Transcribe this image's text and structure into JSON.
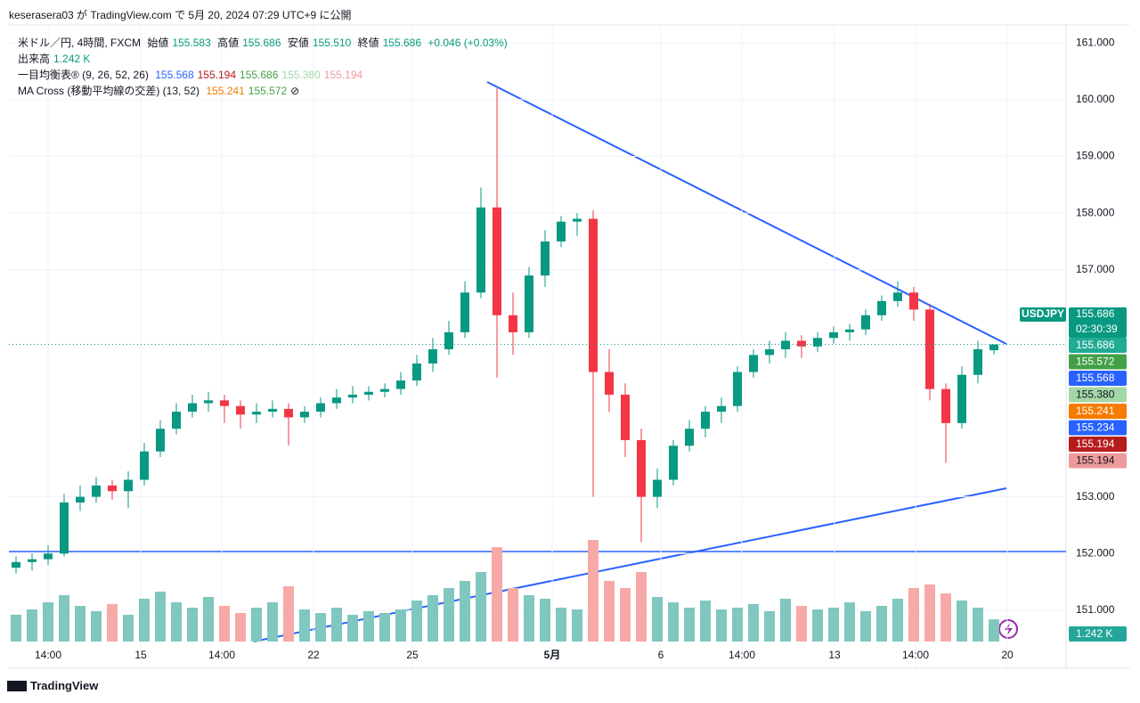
{
  "header": {
    "published": "keserasera03 が TradingView.com で 5月 20, 2024 07:29 UTC+9 に公開"
  },
  "legend": {
    "line1": {
      "symbol": "米ドル／円, 4時間, FXCM",
      "open_label": "始値",
      "open": "155.583",
      "high_label": "高値",
      "high": "155.686",
      "low_label": "安値",
      "low": "155.510",
      "close_label": "終値",
      "close": "155.686",
      "change": "+0.046 (+0.03%)"
    },
    "line2": {
      "label": "出来高",
      "value": "1.242 K"
    },
    "line3": {
      "label": "一目均衡表® (9, 26, 52, 26)",
      "values": [
        {
          "text": "155.568",
          "color": "#2962ff"
        },
        {
          "text": "155.194",
          "color": "#b71c1c"
        },
        {
          "text": "155.686",
          "color": "#43a047"
        },
        {
          "text": "155.380",
          "color": "#a5d6a7"
        },
        {
          "text": "155.194",
          "color": "#ef9a9a"
        }
      ]
    },
    "line4": {
      "label": "MA Cross (移動平均線の交差) (13, 52)",
      "values": [
        {
          "text": "155.241",
          "color": "#f57c00"
        },
        {
          "text": "155.572",
          "color": "#43a047"
        }
      ],
      "icon": "⊘"
    }
  },
  "chart": {
    "price_ylim": [
      150.45,
      161.41
    ],
    "price_ticks": [
      {
        "value": 161,
        "label": "161.000"
      },
      {
        "value": 160,
        "label": "160.000"
      },
      {
        "value": 159,
        "label": "159.000"
      },
      {
        "value": 158,
        "label": "158.000"
      },
      {
        "value": 157,
        "label": "157.000"
      },
      {
        "value": 153,
        "label": "153.000"
      },
      {
        "value": 152,
        "label": "152.000"
      },
      {
        "value": 151,
        "label": "151.000"
      }
    ],
    "x_labels": [
      "14:00",
      "15",
      "14:00",
      "22",
      "25",
      "5月",
      "6",
      "14:00",
      "13",
      "14:00",
      "20"
    ],
    "up_color": "#089981",
    "down_color": "#f23645",
    "candles": [
      [
        151.75,
        151.95,
        151.65,
        151.85
      ],
      [
        151.85,
        152.0,
        151.7,
        151.9
      ],
      [
        151.9,
        152.15,
        151.8,
        152.0
      ],
      [
        152.0,
        153.05,
        151.95,
        152.9
      ],
      [
        152.9,
        153.2,
        152.75,
        153.0
      ],
      [
        153.0,
        153.35,
        152.9,
        153.2
      ],
      [
        153.2,
        153.3,
        152.95,
        153.1
      ],
      [
        153.1,
        153.45,
        152.8,
        153.3
      ],
      [
        153.3,
        153.95,
        153.2,
        153.8
      ],
      [
        153.8,
        154.35,
        153.7,
        154.2
      ],
      [
        154.2,
        154.65,
        154.1,
        154.5
      ],
      [
        154.5,
        154.8,
        154.4,
        154.65
      ],
      [
        154.65,
        154.85,
        154.5,
        154.7
      ],
      [
        154.7,
        154.8,
        154.3,
        154.6
      ],
      [
        154.6,
        154.7,
        154.2,
        154.45
      ],
      [
        154.45,
        154.65,
        154.3,
        154.5
      ],
      [
        154.5,
        154.7,
        154.4,
        154.55
      ],
      [
        154.55,
        154.65,
        153.9,
        154.4
      ],
      [
        154.4,
        154.6,
        154.3,
        154.5
      ],
      [
        154.5,
        154.75,
        154.4,
        154.65
      ],
      [
        154.65,
        154.9,
        154.55,
        154.75
      ],
      [
        154.75,
        154.95,
        154.65,
        154.8
      ],
      [
        154.8,
        154.95,
        154.7,
        154.85
      ],
      [
        154.85,
        155.0,
        154.75,
        154.9
      ],
      [
        154.9,
        155.2,
        154.8,
        155.05
      ],
      [
        155.05,
        155.5,
        154.95,
        155.35
      ],
      [
        155.35,
        155.8,
        155.2,
        155.6
      ],
      [
        155.6,
        156.1,
        155.5,
        155.9
      ],
      [
        155.9,
        156.8,
        155.8,
        156.6
      ],
      [
        156.6,
        158.45,
        156.5,
        158.1
      ],
      [
        158.1,
        160.2,
        155.1,
        156.2
      ],
      [
        156.2,
        156.6,
        155.5,
        155.9
      ],
      [
        155.9,
        157.05,
        155.8,
        156.9
      ],
      [
        156.9,
        157.7,
        156.7,
        157.5
      ],
      [
        157.5,
        157.95,
        157.4,
        157.85
      ],
      [
        157.85,
        158.0,
        157.6,
        157.9
      ],
      [
        157.9,
        158.05,
        153.0,
        155.2
      ],
      [
        155.2,
        155.6,
        154.5,
        154.8
      ],
      [
        154.8,
        155.0,
        153.7,
        154.0
      ],
      [
        154.0,
        154.2,
        152.2,
        153.0
      ],
      [
        153.0,
        153.5,
        152.8,
        153.3
      ],
      [
        153.3,
        154.0,
        153.2,
        153.9
      ],
      [
        153.9,
        154.35,
        153.8,
        154.2
      ],
      [
        154.2,
        154.6,
        154.05,
        154.5
      ],
      [
        154.5,
        154.75,
        154.3,
        154.6
      ],
      [
        154.6,
        155.3,
        154.5,
        155.2
      ],
      [
        155.2,
        155.6,
        155.1,
        155.5
      ],
      [
        155.5,
        155.75,
        155.35,
        155.6
      ],
      [
        155.6,
        155.9,
        155.45,
        155.75
      ],
      [
        155.75,
        155.85,
        155.45,
        155.65
      ],
      [
        155.65,
        155.9,
        155.55,
        155.8
      ],
      [
        155.8,
        156.0,
        155.7,
        155.9
      ],
      [
        155.9,
        156.05,
        155.75,
        155.95
      ],
      [
        155.95,
        156.3,
        155.85,
        156.2
      ],
      [
        156.2,
        156.55,
        156.1,
        156.45
      ],
      [
        156.45,
        156.8,
        156.35,
        156.6
      ],
      [
        156.6,
        156.7,
        156.1,
        156.3
      ],
      [
        156.3,
        156.4,
        154.7,
        154.9
      ],
      [
        154.9,
        155.0,
        153.6,
        154.3
      ],
      [
        154.3,
        155.3,
        154.2,
        155.15
      ],
      [
        155.15,
        155.75,
        155.0,
        155.6
      ],
      [
        155.583,
        155.686,
        155.51,
        155.686
      ]
    ],
    "volume_ylim": [
      0,
      6
    ],
    "volumes": [
      1.5,
      1.8,
      2.2,
      2.6,
      2.0,
      1.7,
      2.1,
      1.5,
      2.4,
      2.8,
      2.2,
      1.9,
      2.5,
      2.0,
      1.6,
      1.9,
      2.2,
      3.1,
      1.8,
      1.6,
      1.9,
      1.5,
      1.7,
      1.6,
      1.8,
      2.3,
      2.6,
      3.0,
      3.4,
      3.9,
      5.3,
      3.0,
      2.6,
      2.4,
      1.9,
      1.8,
      5.7,
      3.4,
      3.0,
      3.9,
      2.5,
      2.2,
      1.9,
      2.3,
      1.8,
      1.9,
      2.1,
      1.7,
      2.4,
      2.0,
      1.8,
      1.9,
      2.2,
      1.7,
      2.0,
      2.4,
      3.0,
      3.2,
      2.7,
      2.3,
      1.9,
      1.242
    ],
    "symbol_tag": "USDJPY",
    "last_price": "155.686",
    "countdown": "02:30:39",
    "price_tags": [
      {
        "label": "155.686",
        "color": "#22ab94"
      },
      {
        "label": "155.572",
        "color": "#43a047"
      },
      {
        "label": "155.568",
        "color": "#2962ff"
      },
      {
        "label": "155.380",
        "color": "#a5d6a7"
      },
      {
        "label": "155.241",
        "color": "#f57c00"
      },
      {
        "label": "155.234",
        "color": "#2962ff"
      },
      {
        "label": "155.194",
        "color": "#b71c1c"
      },
      {
        "label": "155.194",
        "color": "#ef9a9a"
      }
    ],
    "volume_tag": "1.242 K"
  },
  "footer": {
    "brand": "TradingView"
  }
}
